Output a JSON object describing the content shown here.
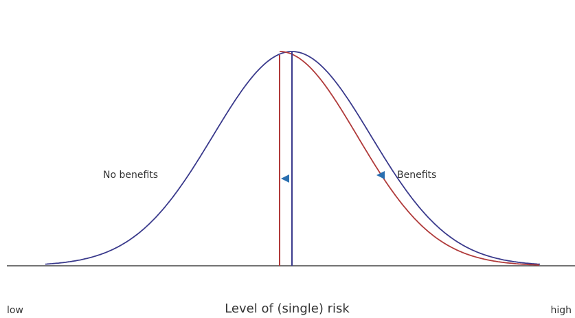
{
  "labels": {
    "no_benefits": "No benefits",
    "benefits": "Benefits"
  },
  "axis": {
    "low": "low",
    "title": "Level of (single) risk",
    "high": "high"
  }
}
